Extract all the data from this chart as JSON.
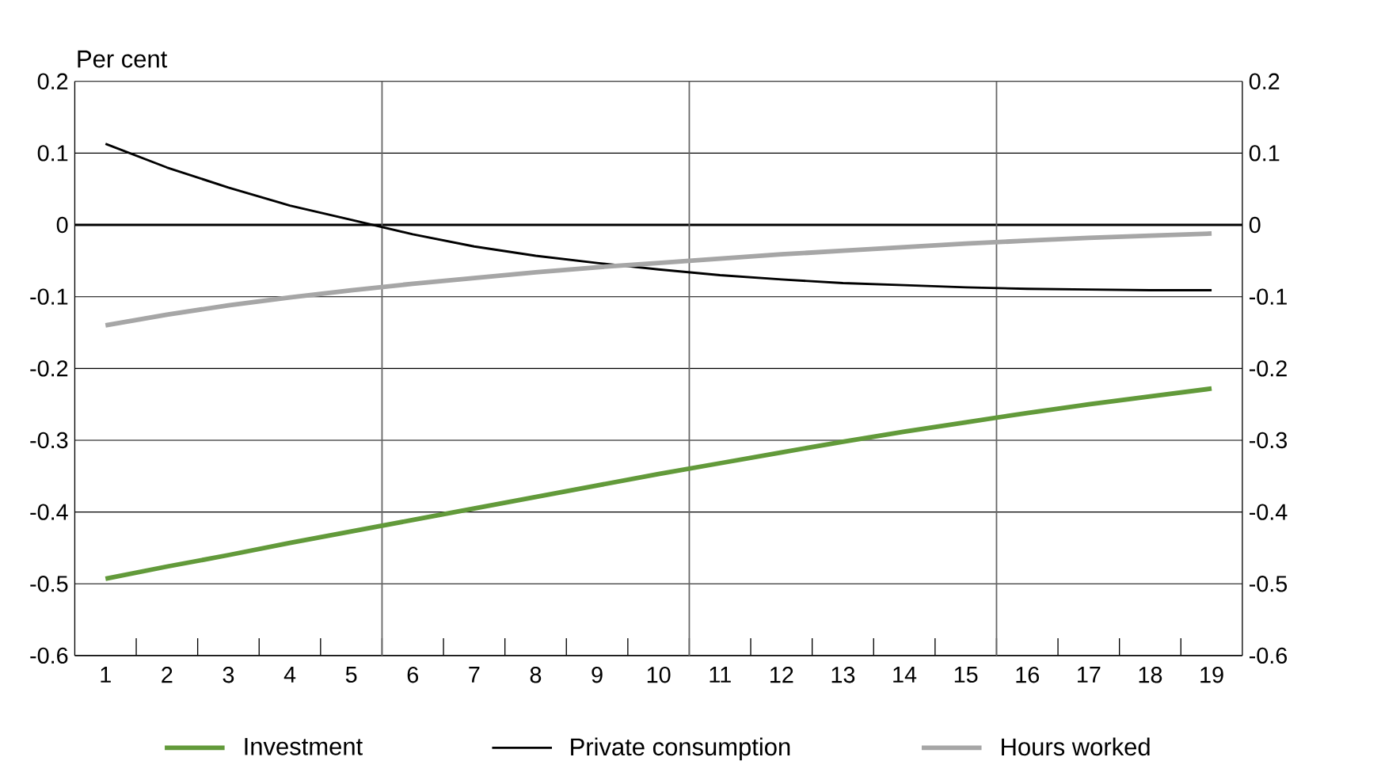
{
  "chart_data": {
    "type": "line",
    "ylabel": "Per cent",
    "x": [
      1,
      2,
      3,
      4,
      5,
      6,
      7,
      8,
      9,
      10,
      11,
      12,
      13,
      14,
      15,
      16,
      17,
      18,
      19
    ],
    "series": [
      {
        "name": "Investment",
        "color": "#629a3a",
        "values": [
          -0.493,
          -0.476,
          -0.46,
          -0.443,
          -0.427,
          -0.411,
          -0.395,
          -0.379,
          -0.363,
          -0.347,
          -0.332,
          -0.317,
          -0.302,
          -0.288,
          -0.275,
          -0.262,
          -0.25,
          -0.239,
          -0.228
        ]
      },
      {
        "name": "Private consumption",
        "color": "#000000",
        "values": [
          0.113,
          0.08,
          0.052,
          0.027,
          0.007,
          -0.013,
          -0.03,
          -0.043,
          -0.053,
          -0.062,
          -0.07,
          -0.076,
          -0.081,
          -0.084,
          -0.087,
          -0.089,
          -0.09,
          -0.091,
          -0.091
        ]
      },
      {
        "name": "Hours worked",
        "color": "#a6a6a6",
        "values": [
          -0.14,
          -0.125,
          -0.112,
          -0.101,
          -0.091,
          -0.082,
          -0.074,
          -0.066,
          -0.059,
          -0.053,
          -0.047,
          -0.041,
          -0.036,
          -0.031,
          -0.026,
          -0.022,
          -0.018,
          -0.015,
          -0.012
        ]
      }
    ],
    "xlim": [
      0.5,
      19.5
    ],
    "xticks": [
      1,
      2,
      3,
      4,
      5,
      6,
      7,
      8,
      9,
      10,
      11,
      12,
      13,
      14,
      15,
      16,
      17,
      18,
      19,
      {
        "value": 1.5,
        "label": null
      },
      {
        "value": 2.5,
        "label": null
      },
      {
        "value": 3.5,
        "label": null
      },
      {
        "value": 4.5,
        "label": null
      },
      {
        "value": 5.5,
        "label": null
      },
      {
        "value": 6.5,
        "label": null
      },
      {
        "value": 7.5,
        "label": null
      },
      {
        "value": 8.5,
        "label": null
      },
      {
        "value": 9.5,
        "label": null
      },
      {
        "value": 10.5,
        "label": null
      },
      {
        "value": 11.5,
        "label": null
      },
      {
        "value": 12.5,
        "label": null
      },
      {
        "value": 13.5,
        "label": null
      },
      {
        "value": 14.5,
        "label": null
      },
      {
        "value": 15.5,
        "label": null
      },
      {
        "value": 16.5,
        "label": null
      },
      {
        "value": 17.5,
        "label": null
      },
      {
        "value": 18.5,
        "label": null
      }
    ],
    "ylim": [
      -0.6,
      0.2
    ],
    "yticks": [
      -0.6,
      -0.5,
      -0.4,
      -0.3,
      -0.2,
      -0.1,
      0,
      0.1,
      0.2
    ],
    "y2lim": [
      -0.6,
      0.2
    ],
    "y2ticks": [
      -0.6,
      -0.5,
      -0.4,
      -0.3,
      -0.2,
      -0.1,
      0,
      0.1,
      0.2
    ],
    "ref_lines": [
      {
        "axis": "y",
        "value": 0,
        "color": "#000000"
      },
      {
        "axis": "x",
        "value": 5.5,
        "color": "#666666"
      },
      {
        "axis": "x",
        "value": 10.5,
        "color": "#666666"
      },
      {
        "axis": "x",
        "value": 15.5,
        "color": "#666666"
      }
    ],
    "grid": "y",
    "legend": "bottom",
    "marker": "none",
    "line_style": "solid"
  }
}
